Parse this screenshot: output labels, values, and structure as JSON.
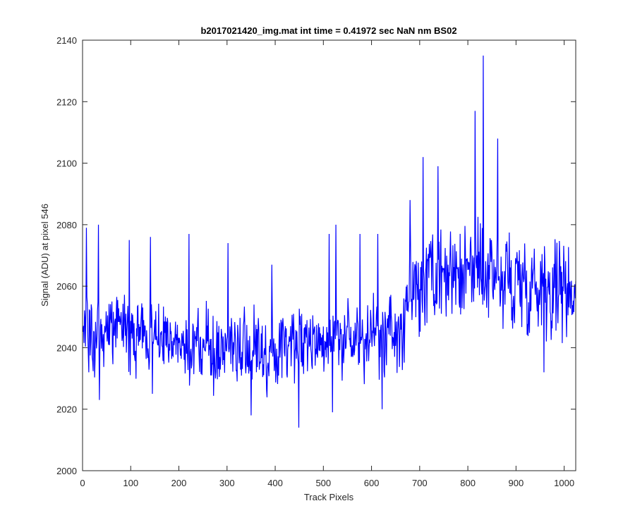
{
  "chart_data": {
    "type": "line",
    "title": "b2017021420_img.mat int time = 0.41972 sec  NaN nm BS02",
    "xlabel": "Track Pixels",
    "ylabel": "Signal (ADU) at pixel 546",
    "xlim": [
      0,
      1024
    ],
    "ylim": [
      2000,
      2140
    ],
    "xticks": [
      0,
      100,
      200,
      300,
      400,
      500,
      600,
      700,
      800,
      900,
      1000
    ],
    "yticks": [
      2000,
      2020,
      2040,
      2060,
      2080,
      2100,
      2120,
      2140
    ],
    "grid": false,
    "line_color": "#0000ff",
    "series": [
      {
        "x_start": 1,
        "x_step": 8,
        "values": [
          2046,
          2052,
          2044,
          2041,
          2048,
          2047,
          2045,
          2049,
          2043,
          2051,
          2046,
          2050,
          2039,
          2047,
          2042,
          2044,
          2046,
          2041,
          2043,
          2048,
          2038,
          2044,
          2040,
          2042,
          2043,
          2039,
          2041,
          2040,
          2038,
          2044,
          2041,
          2038,
          2042,
          2037,
          2040,
          2041,
          2039,
          2040,
          2036,
          2038,
          2039,
          2038,
          2041,
          2037,
          2043,
          2039,
          2040,
          2038,
          2036,
          2041,
          2038,
          2040,
          2043,
          2041,
          2044,
          2042,
          2045,
          2040,
          2043,
          2044,
          2042,
          2045,
          2043,
          2040,
          2046,
          2041,
          2044,
          2042,
          2043,
          2045,
          2041,
          2044,
          2043,
          2040,
          2042,
          2044,
          2046,
          2043,
          2041,
          2045,
          2047,
          2044,
          2043,
          2042,
          2055,
          2058,
          2062,
          2056,
          2061,
          2058,
          2064,
          2060,
          2057,
          2063,
          2060,
          2066,
          2062,
          2059,
          2064,
          2061,
          2066,
          2068,
          2067,
          2063,
          2065,
          2060,
          2071,
          2064,
          2062,
          2058,
          2066,
          2061,
          2059,
          2065,
          2060,
          2063,
          2057,
          2062,
          2059,
          2064,
          2061,
          2060,
          2058,
          2062,
          2060,
          2057,
          2061,
          2059
        ]
      }
    ],
    "spikes": [
      {
        "x": 8,
        "y": 2079
      },
      {
        "x": 13,
        "y": 2032
      },
      {
        "x": 33,
        "y": 2080
      },
      {
        "x": 35,
        "y": 2023
      },
      {
        "x": 97,
        "y": 2075
      },
      {
        "x": 141,
        "y": 2076
      },
      {
        "x": 145,
        "y": 2025
      },
      {
        "x": 221,
        "y": 2077
      },
      {
        "x": 302,
        "y": 2074
      },
      {
        "x": 350,
        "y": 2018
      },
      {
        "x": 393,
        "y": 2067
      },
      {
        "x": 449,
        "y": 2014
      },
      {
        "x": 512,
        "y": 2077
      },
      {
        "x": 519,
        "y": 2019
      },
      {
        "x": 526,
        "y": 2080
      },
      {
        "x": 576,
        "y": 2077
      },
      {
        "x": 613,
        "y": 2077
      },
      {
        "x": 622,
        "y": 2020
      },
      {
        "x": 680,
        "y": 2088
      },
      {
        "x": 707,
        "y": 2102
      },
      {
        "x": 738,
        "y": 2099
      },
      {
        "x": 815,
        "y": 2117
      },
      {
        "x": 832,
        "y": 2135
      },
      {
        "x": 862,
        "y": 2108
      },
      {
        "x": 958,
        "y": 2032
      }
    ]
  }
}
